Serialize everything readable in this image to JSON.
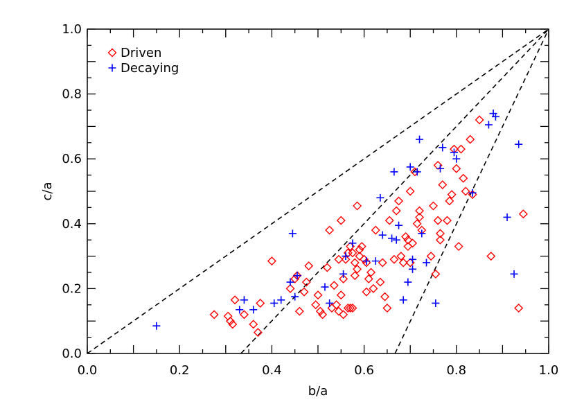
{
  "chart_data": {
    "type": "scatter",
    "title": "",
    "xlabel": "b/a",
    "ylabel": "c/a",
    "xlim": [
      0.0,
      1.0
    ],
    "ylim": [
      0.0,
      1.0
    ],
    "grid": false,
    "xticks": [
      0.0,
      0.2,
      0.4,
      0.6,
      0.8,
      1.0
    ],
    "yticks": [
      0.0,
      0.2,
      0.4,
      0.6,
      0.8,
      1.0
    ],
    "xtick_labels": [
      "0.0",
      "0.2",
      "0.4",
      "0.6",
      "0.8",
      "1.0"
    ],
    "ytick_labels": [
      "0.0",
      "0.2",
      "0.4",
      "0.6",
      "0.8",
      "1.0"
    ],
    "legend_position": "top-left",
    "reference_lines": [
      {
        "style": "dashed",
        "color": "#000000",
        "points": [
          [
            0.0,
            0.0
          ],
          [
            1.0,
            1.0
          ]
        ]
      },
      {
        "style": "dashed",
        "color": "#000000",
        "points": [
          [
            0.333,
            0.0
          ],
          [
            1.0,
            1.0
          ]
        ]
      },
      {
        "style": "dashed",
        "color": "#000000",
        "points": [
          [
            0.667,
            0.0
          ],
          [
            1.0,
            1.0
          ]
        ]
      }
    ],
    "series": [
      {
        "name": "Driven",
        "marker": "diamond",
        "color": "#ff0000",
        "x": [
          0.275,
          0.305,
          0.31,
          0.315,
          0.32,
          0.34,
          0.36,
          0.37,
          0.375,
          0.4,
          0.44,
          0.45,
          0.455,
          0.46,
          0.47,
          0.475,
          0.48,
          0.495,
          0.5,
          0.505,
          0.51,
          0.52,
          0.525,
          0.53,
          0.535,
          0.54,
          0.545,
          0.545,
          0.55,
          0.55,
          0.555,
          0.555,
          0.56,
          0.565,
          0.565,
          0.57,
          0.57,
          0.575,
          0.575,
          0.58,
          0.58,
          0.585,
          0.585,
          0.59,
          0.59,
          0.595,
          0.6,
          0.605,
          0.605,
          0.61,
          0.615,
          0.62,
          0.625,
          0.635,
          0.64,
          0.645,
          0.65,
          0.655,
          0.665,
          0.67,
          0.675,
          0.68,
          0.685,
          0.69,
          0.695,
          0.695,
          0.7,
          0.7,
          0.705,
          0.71,
          0.715,
          0.72,
          0.72,
          0.725,
          0.745,
          0.75,
          0.755,
          0.76,
          0.76,
          0.765,
          0.765,
          0.77,
          0.78,
          0.785,
          0.79,
          0.795,
          0.8,
          0.805,
          0.81,
          0.815,
          0.82,
          0.83,
          0.835,
          0.85,
          0.875,
          0.935,
          0.945
        ],
        "y": [
          0.12,
          0.115,
          0.1,
          0.09,
          0.165,
          0.12,
          0.09,
          0.065,
          0.155,
          0.285,
          0.2,
          0.23,
          0.24,
          0.13,
          0.19,
          0.22,
          0.27,
          0.15,
          0.18,
          0.13,
          0.12,
          0.265,
          0.38,
          0.14,
          0.21,
          0.15,
          0.13,
          0.29,
          0.41,
          0.18,
          0.23,
          0.12,
          0.29,
          0.14,
          0.31,
          0.14,
          0.33,
          0.14,
          0.31,
          0.28,
          0.24,
          0.455,
          0.26,
          0.32,
          0.3,
          0.33,
          0.29,
          0.28,
          0.19,
          0.23,
          0.25,
          0.2,
          0.38,
          0.22,
          0.28,
          0.175,
          0.14,
          0.41,
          0.29,
          0.44,
          0.47,
          0.3,
          0.28,
          0.36,
          0.35,
          0.33,
          0.5,
          0.28,
          0.34,
          0.56,
          0.4,
          0.44,
          0.42,
          0.38,
          0.3,
          0.455,
          0.245,
          0.58,
          0.41,
          0.35,
          0.37,
          0.52,
          0.41,
          0.47,
          0.49,
          0.63,
          0.57,
          0.33,
          0.63,
          0.54,
          0.5,
          0.66,
          0.49,
          0.72,
          0.3,
          0.14,
          0.43
        ]
      },
      {
        "name": "Decaying",
        "marker": "plus",
        "color": "#0000ff",
        "x": [
          0.15,
          0.33,
          0.34,
          0.36,
          0.405,
          0.42,
          0.44,
          0.445,
          0.45,
          0.455,
          0.515,
          0.525,
          0.555,
          0.56,
          0.575,
          0.605,
          0.625,
          0.635,
          0.64,
          0.66,
          0.665,
          0.67,
          0.675,
          0.685,
          0.695,
          0.7,
          0.705,
          0.705,
          0.715,
          0.72,
          0.725,
          0.735,
          0.755,
          0.765,
          0.77,
          0.795,
          0.8,
          0.835,
          0.87,
          0.88,
          0.885,
          0.91,
          0.925,
          0.935
        ],
        "y": [
          0.085,
          0.135,
          0.165,
          0.135,
          0.155,
          0.165,
          0.22,
          0.37,
          0.175,
          0.24,
          0.205,
          0.155,
          0.245,
          0.3,
          0.34,
          0.285,
          0.285,
          0.48,
          0.365,
          0.355,
          0.56,
          0.35,
          0.395,
          0.165,
          0.22,
          0.575,
          0.29,
          0.26,
          0.56,
          0.66,
          0.37,
          0.28,
          0.155,
          0.57,
          0.635,
          0.62,
          0.6,
          0.495,
          0.705,
          0.74,
          0.73,
          0.42,
          0.245,
          0.645
        ]
      }
    ]
  }
}
